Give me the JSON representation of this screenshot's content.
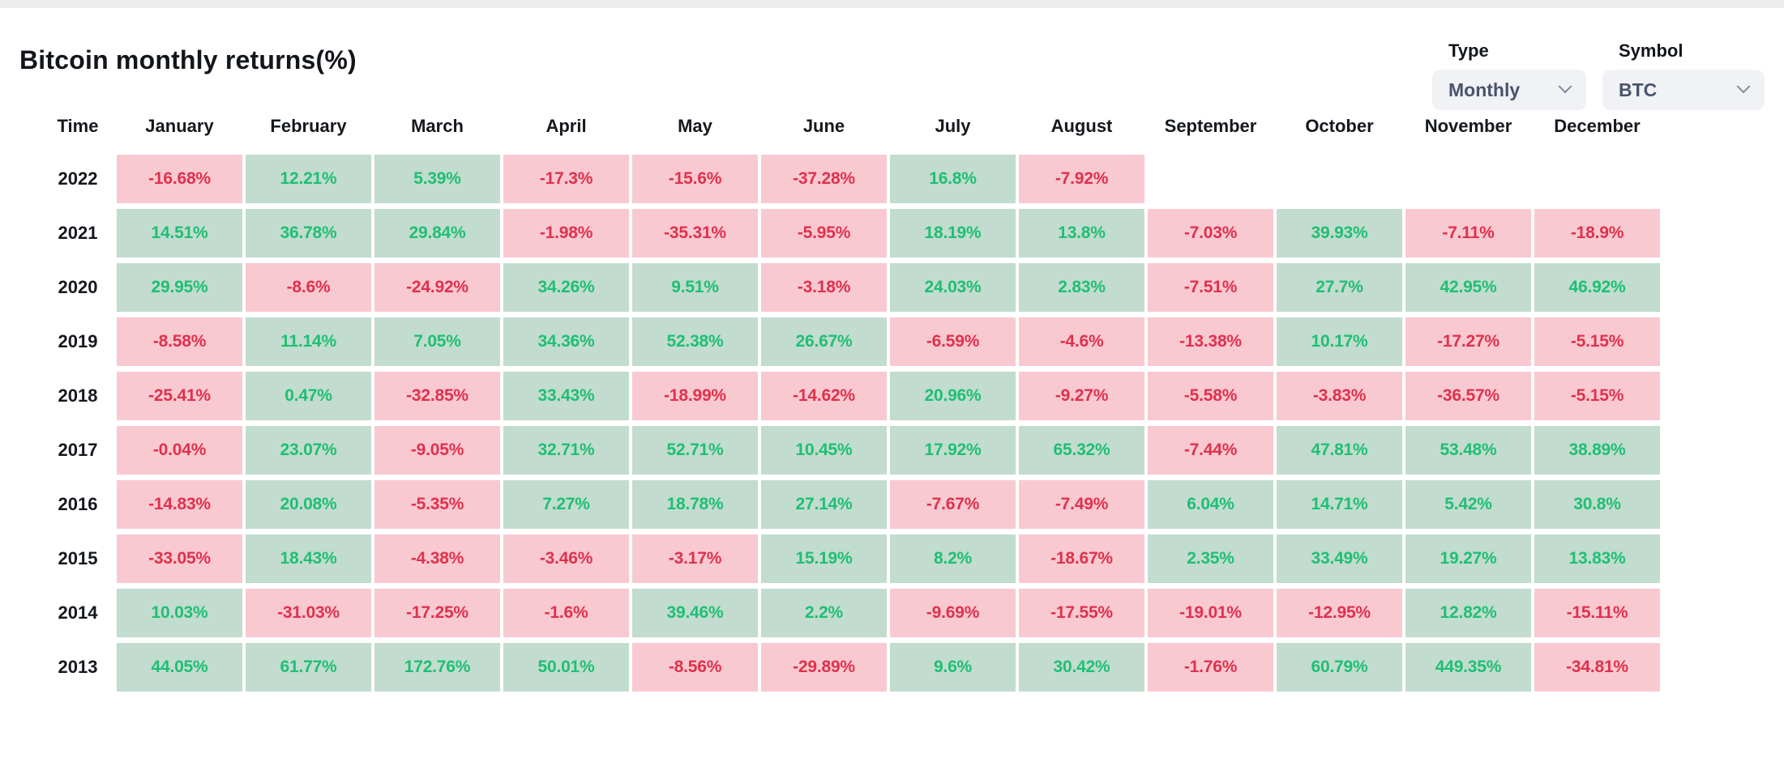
{
  "header": {
    "title": "Bitcoin monthly returns(%)"
  },
  "controls": {
    "type": {
      "label": "Type",
      "value": "Monthly",
      "icon": "chevron-down-icon"
    },
    "symbol": {
      "label": "Symbol",
      "value": "BTC",
      "icon": "chevron-down-icon"
    }
  },
  "chart_data": {
    "type": "heatmap",
    "title": "Bitcoin monthly returns(%)",
    "row_header": "Time",
    "columns": [
      "January",
      "February",
      "March",
      "April",
      "May",
      "June",
      "July",
      "August",
      "September",
      "October",
      "November",
      "December"
    ],
    "unit": "%",
    "rows": [
      {
        "year": "2022",
        "values": [
          -16.68,
          12.21,
          5.39,
          -17.3,
          -15.6,
          -37.28,
          16.8,
          -7.92,
          null,
          null,
          null,
          null
        ]
      },
      {
        "year": "2021",
        "values": [
          14.51,
          36.78,
          29.84,
          -1.98,
          -35.31,
          -5.95,
          18.19,
          13.8,
          -7.03,
          39.93,
          -7.11,
          -18.9
        ]
      },
      {
        "year": "2020",
        "values": [
          29.95,
          -8.6,
          -24.92,
          34.26,
          9.51,
          -3.18,
          24.03,
          2.83,
          -7.51,
          27.7,
          42.95,
          46.92
        ]
      },
      {
        "year": "2019",
        "values": [
          -8.58,
          11.14,
          7.05,
          34.36,
          52.38,
          26.67,
          -6.59,
          -4.6,
          -13.38,
          10.17,
          -17.27,
          -5.15
        ]
      },
      {
        "year": "2018",
        "values": [
          -25.41,
          0.47,
          -32.85,
          33.43,
          -18.99,
          -14.62,
          20.96,
          -9.27,
          -5.58,
          -3.83,
          -36.57,
          -5.15
        ]
      },
      {
        "year": "2017",
        "values": [
          -0.04,
          23.07,
          -9.05,
          32.71,
          52.71,
          10.45,
          17.92,
          65.32,
          -7.44,
          47.81,
          53.48,
          38.89
        ]
      },
      {
        "year": "2016",
        "values": [
          -14.83,
          20.08,
          -5.35,
          7.27,
          18.78,
          27.14,
          -7.67,
          -7.49,
          6.04,
          14.71,
          5.42,
          30.8
        ]
      },
      {
        "year": "2015",
        "values": [
          -33.05,
          18.43,
          -4.38,
          -3.46,
          -3.17,
          15.19,
          8.2,
          -18.67,
          2.35,
          33.49,
          19.27,
          13.83
        ]
      },
      {
        "year": "2014",
        "values": [
          10.03,
          -31.03,
          -17.25,
          -1.6,
          39.46,
          2.2,
          -9.69,
          -17.55,
          -19.01,
          -12.95,
          12.82,
          -15.11
        ]
      },
      {
        "year": "2013",
        "values": [
          44.05,
          61.77,
          172.76,
          50.01,
          -8.56,
          -29.89,
          9.6,
          30.42,
          -1.76,
          60.79,
          449.35,
          -34.81
        ]
      }
    ],
    "colors": {
      "positive_bg": "#c2dccf",
      "negative_bg": "#f9c9d1",
      "positive_text": "#1fbf74",
      "negative_text": "#e0314c"
    },
    "legend": "off",
    "grid": "off"
  }
}
